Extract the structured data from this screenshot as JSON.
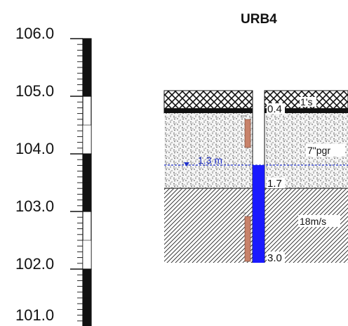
{
  "title": "URB4",
  "elevation_scale": {
    "labels": [
      "106.0",
      "105.0",
      "104.0",
      "103.0",
      "102.0",
      "101.0"
    ]
  },
  "layers": [
    {
      "name": "top-layer",
      "description": "1's",
      "depth_label": "0.4"
    },
    {
      "name": "middle-layer",
      "description": "7\"pgr",
      "depth_label": "1.7"
    },
    {
      "name": "bottom-layer",
      "description": "18m/s",
      "depth_label": "3.0"
    }
  ],
  "water_level": {
    "label": "1.3 m"
  },
  "colors": {
    "ink": "#111111",
    "water": "#1a1aff",
    "water_line": "#2233cc",
    "pipe": "#c8826a"
  }
}
